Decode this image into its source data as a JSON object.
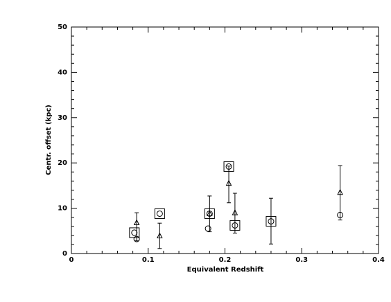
{
  "chart_data": {
    "type": "scatter",
    "xlabel": "Equivalent Redshift",
    "ylabel": "Centr. offset (kpc)",
    "xlim": [
      0,
      0.4
    ],
    "ylim": [
      0,
      50
    ],
    "xticks": [
      0,
      0.1,
      0.2,
      0.3,
      0.4
    ],
    "yticks": [
      0,
      10,
      20,
      30,
      40,
      50
    ],
    "xminorticks": [
      0.02,
      0.04,
      0.06,
      0.08,
      0.12,
      0.14,
      0.16,
      0.18,
      0.22,
      0.24,
      0.26,
      0.28,
      0.32,
      0.34,
      0.36,
      0.38
    ],
    "yminorticks": [
      2,
      4,
      6,
      8,
      12,
      14,
      16,
      18,
      22,
      24,
      26,
      28,
      32,
      34,
      36,
      38,
      42,
      44,
      46,
      48
    ],
    "color": "#000000",
    "series": [
      {
        "marker": "circle",
        "x": [
          0.082,
          0.085,
          0.115,
          0.18,
          0.178,
          0.205,
          0.213,
          0.26,
          0.35
        ],
        "values": [
          4.6,
          3.2,
          8.8,
          8.8,
          5.5,
          19.2,
          6.2,
          7.1,
          8.5
        ]
      },
      {
        "marker": "triangle",
        "x": [
          0.085,
          0.115,
          0.18,
          0.205,
          0.213,
          0.35
        ],
        "values": [
          6.8,
          3.9,
          8.8,
          15.5,
          9.0,
          13.5
        ]
      },
      {
        "marker": "square",
        "x": [
          0.082,
          0.115,
          0.18,
          0.205,
          0.213,
          0.26
        ],
        "values": [
          4.6,
          8.8,
          8.8,
          19.2,
          6.2,
          7.1
        ]
      }
    ],
    "errorbars": {
      "x": [
        0.085,
        0.115,
        0.18,
        0.205,
        0.213,
        0.26,
        0.35
      ],
      "low": [
        2.8,
        1.1,
        4.8,
        11.2,
        4.5,
        2.1,
        7.4
      ],
      "high": [
        9.0,
        6.7,
        12.7,
        19.3,
        13.3,
        12.2,
        19.4
      ]
    }
  }
}
